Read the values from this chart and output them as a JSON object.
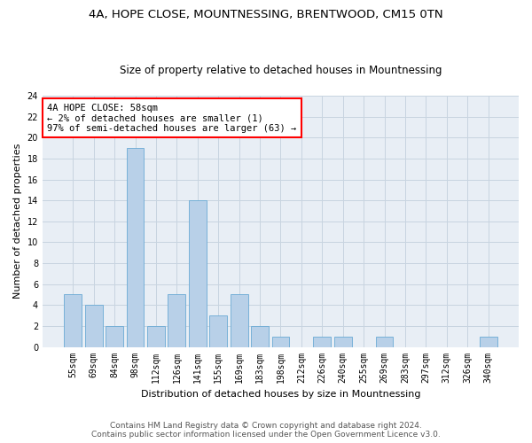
{
  "title": "4A, HOPE CLOSE, MOUNTNESSING, BRENTWOOD, CM15 0TN",
  "subtitle": "Size of property relative to detached houses in Mountnessing",
  "xlabel": "Distribution of detached houses by size in Mountnessing",
  "ylabel": "Number of detached properties",
  "categories": [
    "55sqm",
    "69sqm",
    "84sqm",
    "98sqm",
    "112sqm",
    "126sqm",
    "141sqm",
    "155sqm",
    "169sqm",
    "183sqm",
    "198sqm",
    "212sqm",
    "226sqm",
    "240sqm",
    "255sqm",
    "269sqm",
    "283sqm",
    "297sqm",
    "312sqm",
    "326sqm",
    "340sqm"
  ],
  "values": [
    5,
    4,
    2,
    19,
    2,
    5,
    14,
    3,
    5,
    2,
    1,
    0,
    1,
    1,
    0,
    1,
    0,
    0,
    0,
    0,
    1
  ],
  "bar_color": "#b8d0e8",
  "bar_edge_color": "#6aaad4",
  "annotation_box_text": "4A HOPE CLOSE: 58sqm\n← 2% of detached houses are smaller (1)\n97% of semi-detached houses are larger (63) →",
  "ylim": [
    0,
    24
  ],
  "yticks": [
    0,
    2,
    4,
    6,
    8,
    10,
    12,
    14,
    16,
    18,
    20,
    22,
    24
  ],
  "grid_color": "#c8d4e0",
  "background_color": "#e8eef5",
  "footer_line1": "Contains HM Land Registry data © Crown copyright and database right 2024.",
  "footer_line2": "Contains public sector information licensed under the Open Government Licence v3.0.",
  "title_fontsize": 9.5,
  "subtitle_fontsize": 8.5,
  "xlabel_fontsize": 8,
  "ylabel_fontsize": 8,
  "tick_fontsize": 7,
  "annotation_fontsize": 7.5,
  "footer_fontsize": 6.5
}
